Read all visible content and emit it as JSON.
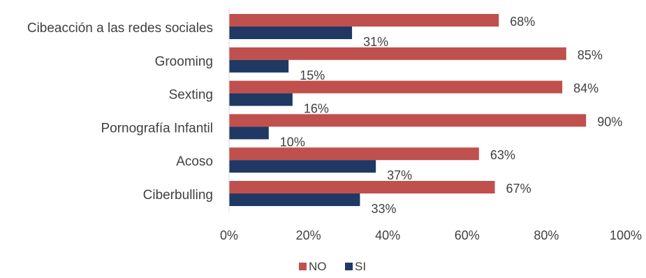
{
  "chart_data": {
    "type": "bar",
    "orientation": "horizontal",
    "categories": [
      "Cibeacción a las redes sociales",
      "Grooming",
      "Sexting",
      "Pornografía Infantil",
      "Acoso",
      "Ciberbulling"
    ],
    "series": [
      {
        "name": "NO",
        "values": [
          68,
          85,
          84,
          90,
          63,
          67
        ],
        "labels": [
          "68%",
          "85%",
          "84%",
          "90%",
          "63%",
          "67%"
        ],
        "color": "#C0504D"
      },
      {
        "name": "SI",
        "values": [
          31,
          15,
          16,
          10,
          37,
          33
        ],
        "labels": [
          "31%",
          "15%",
          "16%",
          "10%",
          "37%",
          "33%"
        ],
        "color": "#1F3864"
      }
    ],
    "xlim": [
      0,
      100
    ],
    "xticks": [
      "0%",
      "20%",
      "40%",
      "60%",
      "80%",
      "100%"
    ],
    "grid": false,
    "legend_position": "bottom"
  }
}
